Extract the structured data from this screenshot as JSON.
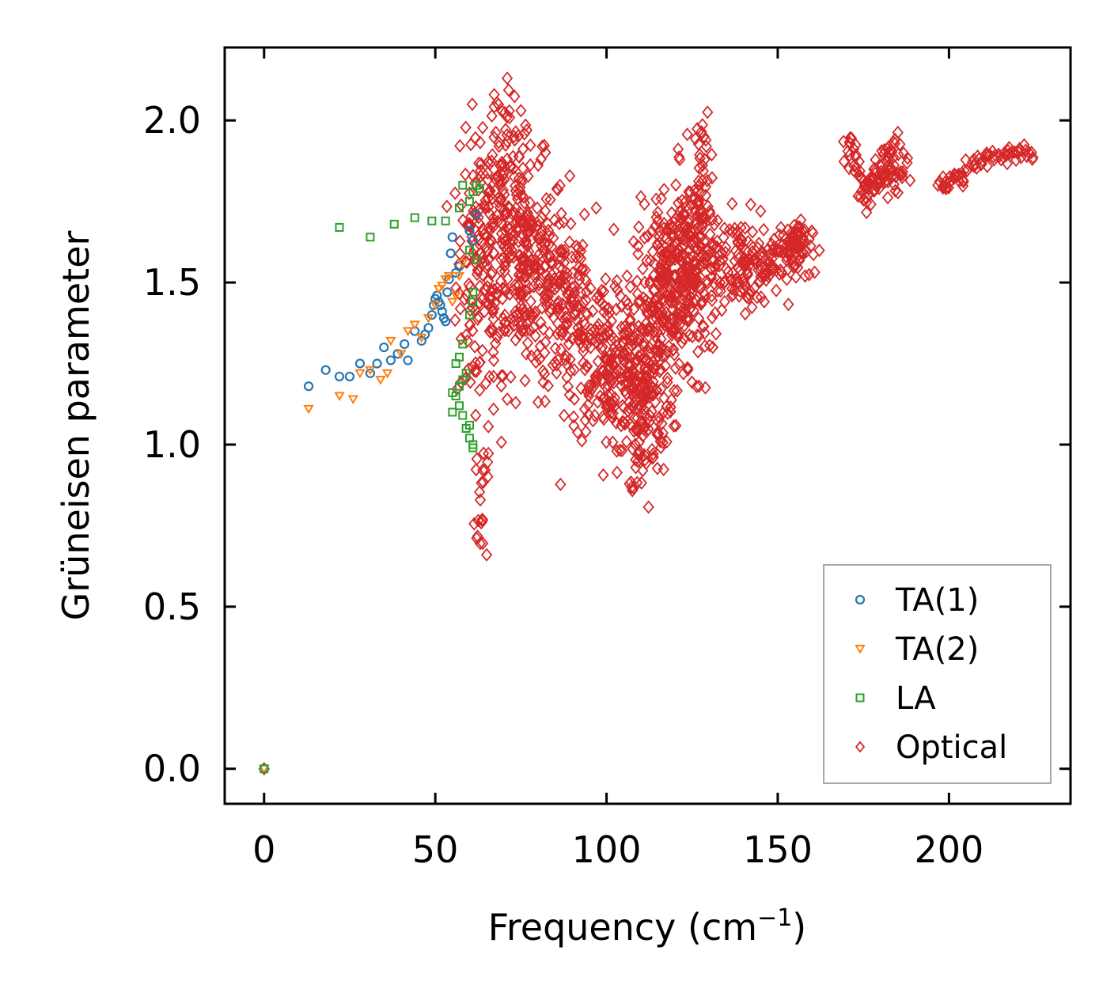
{
  "chart_data": {
    "type": "scatter",
    "title": "",
    "xlabel": "Frequency (cm",
    "xlabel_sup": "−1",
    "xlabel_close": ")",
    "ylabel": "Grüneisen parameter",
    "xlim": [
      -11.5,
      235.5
    ],
    "ylim": [
      -0.108,
      2.225
    ],
    "xticks": [
      0,
      50,
      100,
      150,
      200
    ],
    "xtick_labels": [
      "0",
      "50",
      "100",
      "150",
      "200"
    ],
    "yticks": [
      0.0,
      0.5,
      1.0,
      1.5,
      2.0
    ],
    "ytick_labels": [
      "0.0",
      "0.5",
      "1.0",
      "1.5",
      "2.0"
    ],
    "grid": false,
    "legend_position": "lower-right",
    "series": [
      {
        "name": "TA(1)",
        "marker": "circle",
        "color": "#1f77b4",
        "x": [
          0,
          13,
          18,
          22,
          25,
          28,
          31,
          33,
          35,
          37,
          39,
          41,
          42,
          44,
          46,
          47,
          48,
          49,
          49.5,
          50,
          50.5,
          51,
          51.5,
          52,
          52.5,
          53,
          53.5,
          54,
          54.5,
          55,
          56,
          57,
          60,
          61,
          62
        ],
        "y": [
          0.0,
          1.18,
          1.23,
          1.21,
          1.21,
          1.25,
          1.22,
          1.25,
          1.3,
          1.26,
          1.28,
          1.31,
          1.26,
          1.35,
          1.32,
          1.34,
          1.36,
          1.4,
          1.43,
          1.45,
          1.46,
          1.44,
          1.43,
          1.41,
          1.39,
          1.38,
          1.47,
          1.51,
          1.59,
          1.64,
          1.53,
          1.55,
          1.66,
          1.63,
          1.71
        ]
      },
      {
        "name": "TA(2)",
        "marker": "triangle-down",
        "color": "#ff7f0e",
        "x": [
          0,
          13,
          22,
          26,
          28,
          31,
          34,
          36,
          37,
          40,
          42,
          44,
          46,
          48,
          50,
          51,
          52,
          53,
          54,
          55,
          56,
          57,
          58
        ],
        "y": [
          0.0,
          1.11,
          1.15,
          1.14,
          1.22,
          1.23,
          1.2,
          1.22,
          1.32,
          1.28,
          1.35,
          1.37,
          1.33,
          1.39,
          1.43,
          1.48,
          1.49,
          1.51,
          1.52,
          1.44,
          1.46,
          1.52,
          1.56
        ]
      },
      {
        "name": "LA",
        "marker": "square",
        "color": "#2ca02c",
        "x": [
          0,
          22,
          31,
          38,
          44,
          49,
          53,
          57,
          58,
          60,
          61,
          62,
          63,
          55,
          56,
          57,
          58,
          59,
          60,
          61,
          59,
          60,
          61,
          58,
          57,
          56,
          55,
          57,
          58,
          60,
          61,
          62,
          60,
          61
        ],
        "y": [
          0.0,
          1.67,
          1.64,
          1.68,
          1.7,
          1.69,
          1.69,
          1.73,
          1.8,
          1.75,
          1.78,
          1.8,
          1.79,
          1.1,
          1.15,
          1.18,
          1.2,
          1.22,
          1.02,
          1.0,
          1.05,
          1.06,
          0.99,
          1.31,
          1.27,
          1.25,
          1.16,
          1.12,
          1.09,
          1.4,
          1.47,
          1.57,
          1.6,
          1.44
        ]
      },
      {
        "name": "Optical",
        "marker": "diamond",
        "color": "#d62728",
        "clusters": [
          {
            "cx": 63,
            "cy": 1.5,
            "sx": 3.5,
            "sy": 0.22,
            "n": 120
          },
          {
            "cx": 76,
            "cy": 1.55,
            "sx": 6.5,
            "sy": 0.16,
            "n": 280
          },
          {
            "cx": 70,
            "cy": 1.8,
            "sx": 4.5,
            "sy": 0.12,
            "n": 90
          },
          {
            "cx": 90,
            "cy": 1.4,
            "sx": 6,
            "sy": 0.13,
            "n": 160
          },
          {
            "cx": 100,
            "cy": 1.22,
            "sx": 5,
            "sy": 0.11,
            "n": 120
          },
          {
            "cx": 110,
            "cy": 1.2,
            "sx": 4.5,
            "sy": 0.15,
            "n": 200
          },
          {
            "cx": 118,
            "cy": 1.45,
            "sx": 5,
            "sy": 0.14,
            "n": 200
          },
          {
            "cx": 125,
            "cy": 1.55,
            "sx": 3.5,
            "sy": 0.15,
            "n": 150
          },
          {
            "cx": 140,
            "cy": 1.56,
            "sx": 7,
            "sy": 0.07,
            "n": 150
          },
          {
            "cx": 155,
            "cy": 1.61,
            "sx": 2.5,
            "sy": 0.04,
            "n": 50
          }
        ],
        "lines": [
          {
            "x1": 126,
            "y1": 1.5,
            "x2": 128,
            "y2": 1.99,
            "n": 40,
            "jx": 0.8,
            "jy": 0.03
          },
          {
            "x1": 62,
            "y1": 0.65,
            "x2": 65,
            "y2": 1.0,
            "n": 20,
            "jx": 0.8,
            "jy": 0.03
          },
          {
            "x1": 108,
            "y1": 0.88,
            "x2": 112,
            "y2": 1.3,
            "n": 40,
            "jx": 1.2,
            "jy": 0.03
          },
          {
            "x1": 67,
            "y1": 2.06,
            "x2": 72,
            "y2": 2.0,
            "n": 8,
            "jx": 0.5,
            "jy": 0.02
          },
          {
            "x1": 170,
            "y1": 1.97,
            "x2": 175,
            "y2": 1.77,
            "n": 25,
            "jx": 0.7,
            "jy": 0.02
          },
          {
            "x1": 175,
            "y1": 1.77,
            "x2": 186,
            "y2": 1.93,
            "n": 45,
            "jx": 0.9,
            "jy": 0.03
          },
          {
            "x1": 176,
            "y1": 1.82,
            "x2": 188,
            "y2": 1.86,
            "n": 40,
            "jx": 0.8,
            "jy": 0.04
          },
          {
            "x1": 197,
            "y1": 1.79,
            "x2": 212,
            "y2": 1.89,
            "n": 40,
            "jx": 0.5,
            "jy": 0.015
          },
          {
            "x1": 212,
            "y1": 1.89,
            "x2": 225,
            "y2": 1.9,
            "n": 30,
            "jx": 0.5,
            "jy": 0.012
          },
          {
            "x1": 145,
            "y1": 1.55,
            "x2": 157,
            "y2": 1.65,
            "n": 35,
            "jx": 0.8,
            "jy": 0.03
          },
          {
            "x1": 116,
            "y1": 1.5,
            "x2": 122,
            "y2": 1.78,
            "n": 30,
            "jx": 1.2,
            "jy": 0.04
          }
        ],
        "points": [
          {
            "x": 71,
            "y": 2.13
          },
          {
            "x": 0,
            "y": 0.0
          },
          {
            "x": 65,
            "y": 0.66
          },
          {
            "x": 97,
            "y": 1.73
          },
          {
            "x": 113,
            "y": 1.16
          },
          {
            "x": 127,
            "y": 1.18
          },
          {
            "x": 158,
            "y": 1.52
          },
          {
            "x": 145,
            "y": 1.72
          },
          {
            "x": 124,
            "y": 1.78
          },
          {
            "x": 115,
            "y": 1.69
          },
          {
            "x": 73,
            "y": 1.95
          },
          {
            "x": 67,
            "y": 1.21
          },
          {
            "x": 71,
            "y": 1.14
          },
          {
            "x": 106,
            "y": 1.52
          },
          {
            "x": 103,
            "y": 0.98
          }
        ]
      }
    ]
  }
}
